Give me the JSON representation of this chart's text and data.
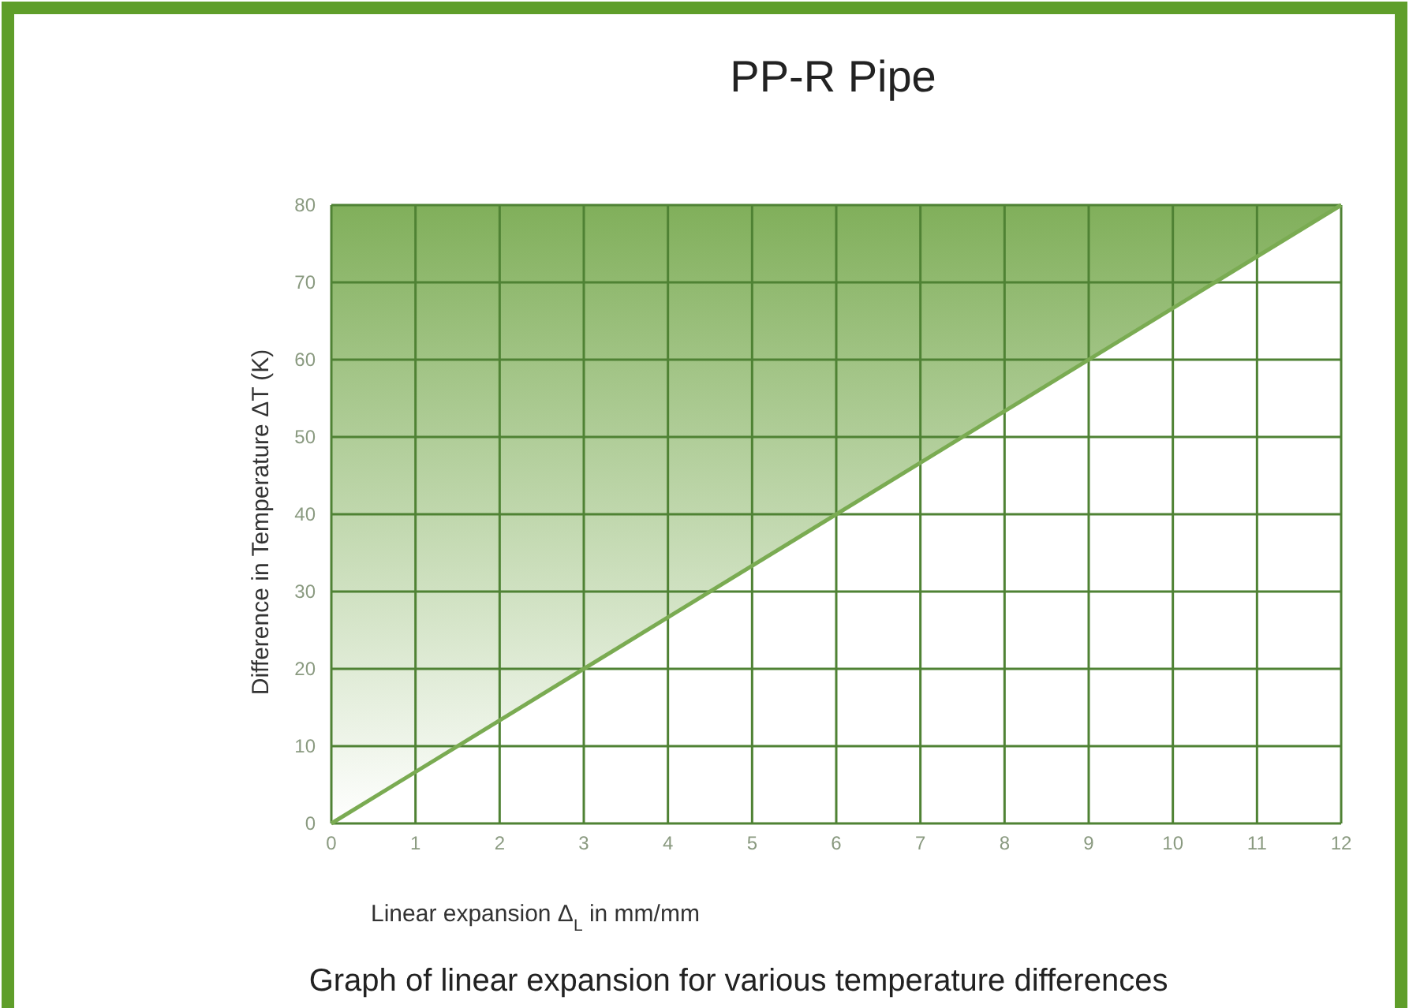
{
  "chart_data": {
    "type": "line",
    "title": "PP-R Pipe",
    "xlabel": "Linear expansion Δ$_{L}$ in mm/mm",
    "ylabel": "Difference in Temperature ΔT (K)",
    "annotations": [
      "Graph of linear expansion for various temperature differences"
    ],
    "xlim": [
      0,
      12
    ],
    "xticks": [
      0,
      1,
      2,
      3,
      4,
      5,
      6,
      7,
      8,
      9,
      10,
      11,
      12
    ],
    "ylim": [
      0,
      80
    ],
    "yticks": [
      0,
      10,
      20,
      30,
      40,
      50,
      60,
      70,
      80
    ],
    "grid": true,
    "marker": "none",
    "line_style": "solid",
    "series": [
      {
        "color": "#7aab52",
        "x": [
          0,
          12
        ],
        "values": [
          0,
          80
        ],
        "lower": [
          0,
          80
        ],
        "upper": [
          80,
          80
        ]
      }
    ]
  }
}
